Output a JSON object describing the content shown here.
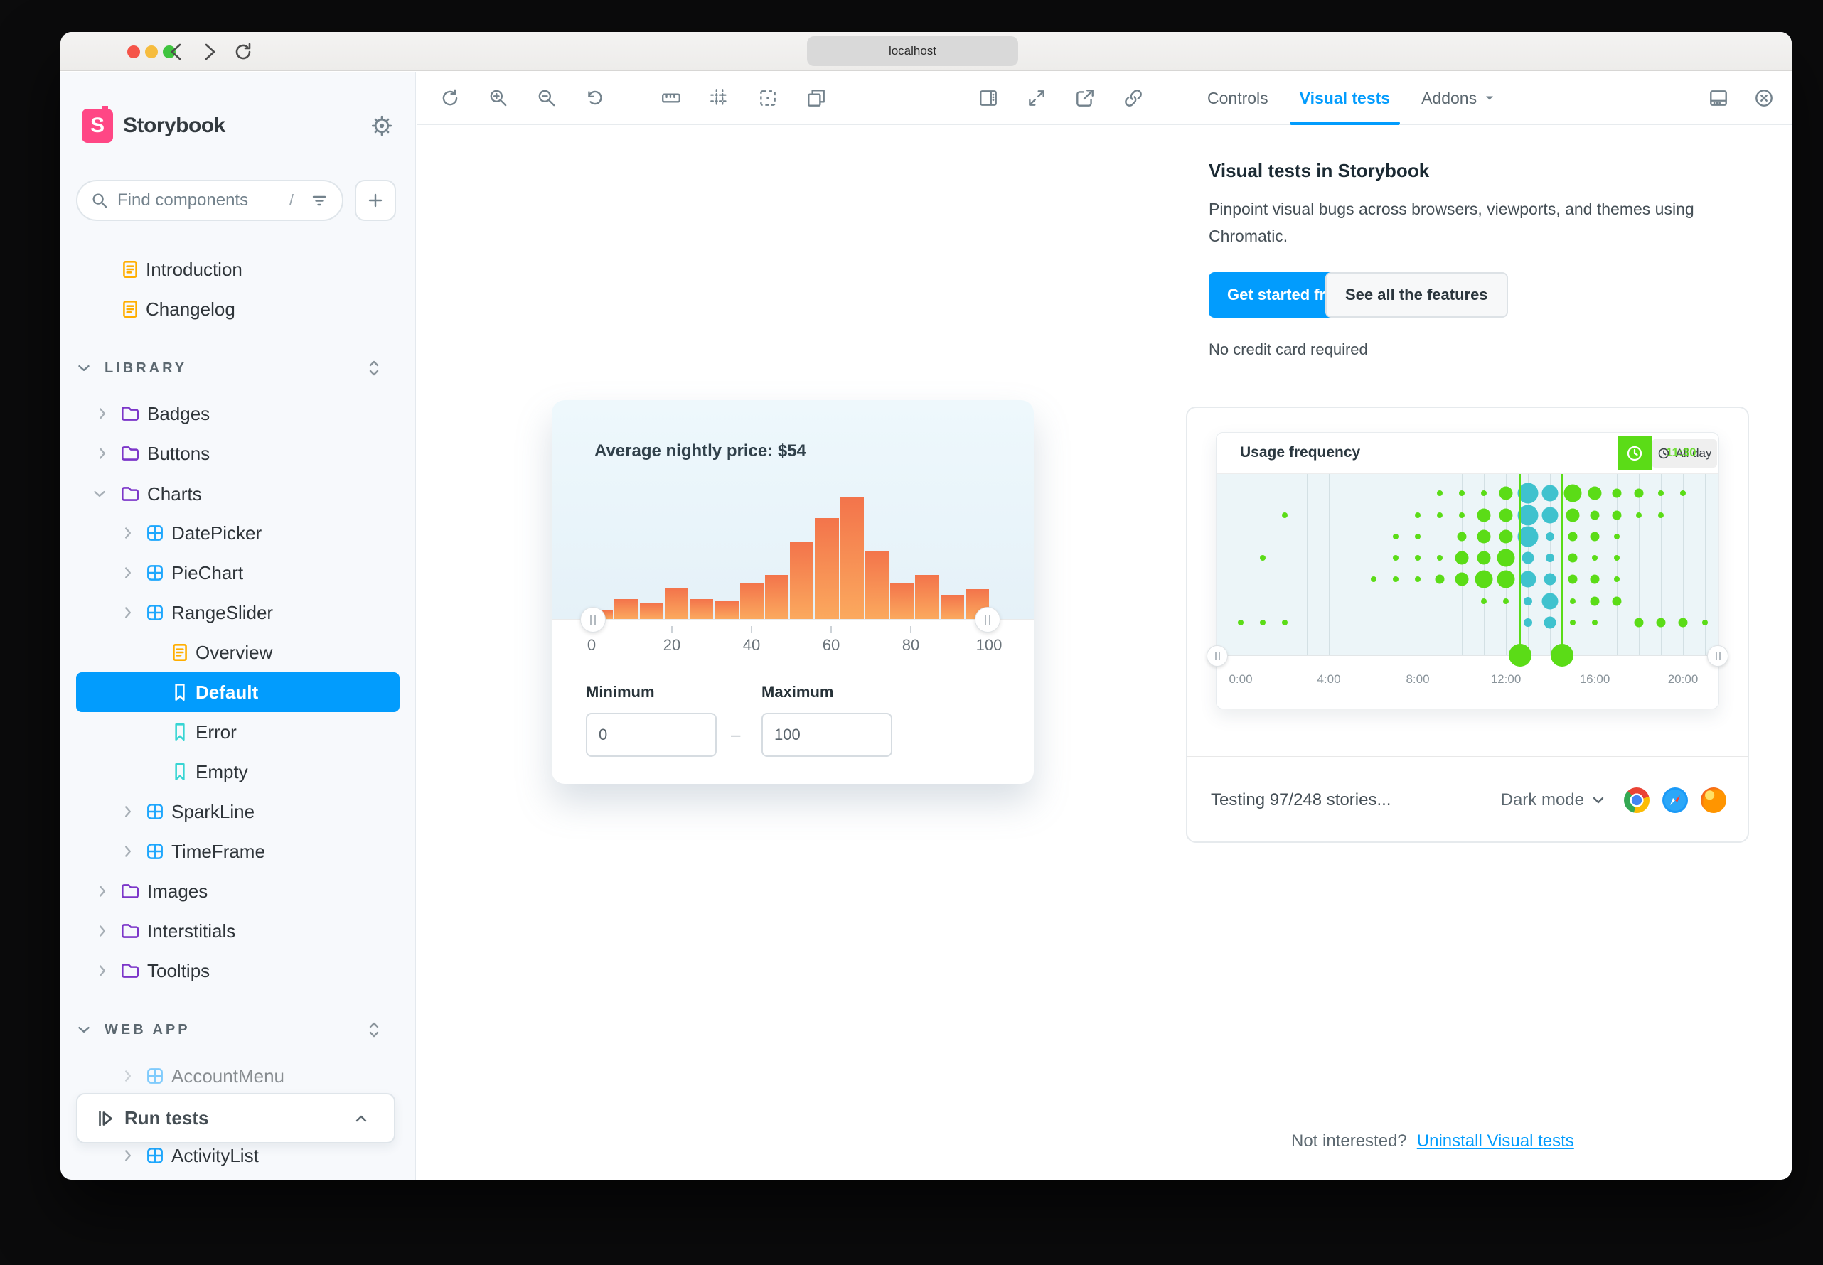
{
  "browser": {
    "url": "localhost"
  },
  "sidebar": {
    "brand": "Storybook",
    "search_placeholder": "Find components",
    "search_shortcut": "/",
    "run_tests": "Run tests",
    "items": {
      "introduction": "Introduction",
      "changelog": "Changelog",
      "library": "LIBRARY",
      "badges": "Badges",
      "buttons": "Buttons",
      "charts": "Charts",
      "datepicker": "DatePicker",
      "piechart": "PieChart",
      "rangeslider": "RangeSlider",
      "overview": "Overview",
      "default": "Default",
      "error": "Error",
      "empty": "Empty",
      "sparkline": "SparkLine",
      "timeframe": "TimeFrame",
      "images": "Images",
      "interstitials": "Interstitials",
      "tooltips": "Tooltips",
      "webapp": "WEB APP",
      "accountmenu": "AccountMenu",
      "activitylist": "ActivityList"
    }
  },
  "preview": {
    "title": "Average nightly price: $54",
    "min_label": "Minimum",
    "max_label": "Maximum",
    "min_value": "0",
    "max_value": "100",
    "range_separator": "–"
  },
  "panel": {
    "tabs": {
      "controls": "Controls",
      "visual_tests": "Visual tests",
      "addons": "Addons"
    },
    "promo": {
      "title": "Visual tests in Storybook",
      "description": "Pinpoint visual bugs across browsers, viewports, and themes using Chromatic.",
      "cta_primary": "Get started free",
      "cta_secondary": "See all the features",
      "note": "No credit card required"
    },
    "status": {
      "testing": "Testing 97/248 stories...",
      "mode": "Dark mode"
    },
    "footer": {
      "question": "Not interested?",
      "link": "Uninstall Visual tests"
    }
  },
  "icons": {
    "browser_icons": [
      "chrome-icon",
      "safari-icon",
      "firefox-icon"
    ],
    "accent_color": "#029CFD",
    "brand_pink": "#FF4785",
    "folder_purple": "#7c36c9",
    "component_blue": "#1EA7FD",
    "doc_orange": "#FFAE00",
    "story_teal": "#37D5D3"
  },
  "chart_data": [
    {
      "type": "bar",
      "title": "Average nightly price: $54",
      "values": [
        12,
        28,
        22,
        43,
        28,
        25,
        51,
        62,
        108,
        142,
        171,
        96,
        51,
        62,
        34,
        42
      ],
      "values_note": "16 price buckets, heights in px relative to tallest bar = 171",
      "x_tick_labels": [
        "0",
        "20",
        "40",
        "60",
        "80",
        "100"
      ],
      "xlim": [
        0,
        100
      ],
      "ylabel": "",
      "xlabel": "",
      "grid": false,
      "slider": {
        "min": 0,
        "max": 100
      },
      "colors": {
        "bar_top": "#F3744B",
        "bar_bottom": "#FBA95E"
      }
    },
    {
      "type": "scatter",
      "title": "Usage frequency",
      "badge": "All day",
      "badge_alt": "11:30",
      "x_tick_labels": [
        "0:00",
        "4:00",
        "8:00",
        "12:00",
        "16:00",
        "20:00"
      ],
      "x_hours_range": [
        0,
        22
      ],
      "rows": 7,
      "selection_hours": [
        12.6,
        14.5
      ],
      "dot_size_scale_px": [
        8,
        13,
        19,
        25
      ],
      "colors": {
        "dot": "#5BDC17",
        "dot_selected": "#3FC2CE",
        "selection": "#5BDC17",
        "plot_bg": "#ecf5f8"
      },
      "dots": [
        [
          9,
          0,
          1,
          0
        ],
        [
          10,
          0,
          1,
          0
        ],
        [
          11,
          0,
          1,
          0
        ],
        [
          12,
          0,
          3,
          0
        ],
        [
          13,
          0,
          4,
          1
        ],
        [
          14,
          0,
          3,
          1
        ],
        [
          15,
          0,
          4,
          0
        ],
        [
          16,
          0,
          3,
          0
        ],
        [
          17,
          0,
          2,
          0
        ],
        [
          18,
          0,
          2,
          0
        ],
        [
          19,
          0,
          1,
          0
        ],
        [
          20,
          0,
          1,
          0
        ],
        [
          2,
          1,
          1,
          0
        ],
        [
          8,
          1,
          1,
          0
        ],
        [
          9,
          1,
          1,
          0
        ],
        [
          10,
          1,
          1,
          0
        ],
        [
          11,
          1,
          3,
          0
        ],
        [
          12,
          1,
          3,
          0
        ],
        [
          13,
          1,
          4,
          1
        ],
        [
          14,
          1,
          3,
          1
        ],
        [
          15,
          1,
          3,
          0
        ],
        [
          16,
          1,
          2,
          0
        ],
        [
          17,
          1,
          2,
          0
        ],
        [
          18,
          1,
          1,
          0
        ],
        [
          19,
          1,
          1,
          0
        ],
        [
          7,
          2,
          1,
          0
        ],
        [
          8,
          2,
          1,
          0
        ],
        [
          10,
          2,
          2,
          0
        ],
        [
          11,
          2,
          3,
          0
        ],
        [
          12,
          2,
          3,
          0
        ],
        [
          13,
          2,
          4,
          1
        ],
        [
          14,
          2,
          1,
          1
        ],
        [
          15,
          2,
          2,
          0
        ],
        [
          16,
          2,
          2,
          0
        ],
        [
          17,
          2,
          1,
          0
        ],
        [
          1,
          3,
          1,
          0
        ],
        [
          7,
          3,
          1,
          0
        ],
        [
          8,
          3,
          1,
          0
        ],
        [
          9,
          3,
          1,
          0
        ],
        [
          10,
          3,
          3,
          0
        ],
        [
          11,
          3,
          3,
          0
        ],
        [
          12,
          3,
          4,
          0
        ],
        [
          13,
          3,
          2,
          1
        ],
        [
          14,
          3,
          1,
          1
        ],
        [
          15,
          3,
          2,
          0
        ],
        [
          16,
          3,
          1,
          0
        ],
        [
          17,
          3,
          1,
          0
        ],
        [
          6,
          4,
          1,
          0
        ],
        [
          7,
          4,
          1,
          0
        ],
        [
          8,
          4,
          1,
          0
        ],
        [
          9,
          4,
          2,
          0
        ],
        [
          10,
          4,
          3,
          0
        ],
        [
          11,
          4,
          4,
          0
        ],
        [
          12,
          4,
          4,
          0
        ],
        [
          13,
          4,
          3,
          1
        ],
        [
          14,
          4,
          2,
          1
        ],
        [
          15,
          4,
          2,
          0
        ],
        [
          16,
          4,
          2,
          0
        ],
        [
          17,
          4,
          1,
          0
        ],
        [
          11,
          5,
          1,
          0
        ],
        [
          12,
          5,
          1,
          0
        ],
        [
          13,
          5,
          1,
          1
        ],
        [
          14,
          5,
          3,
          1
        ],
        [
          15,
          5,
          1,
          0
        ],
        [
          16,
          5,
          2,
          0
        ],
        [
          17,
          5,
          2,
          0
        ],
        [
          0,
          6,
          1,
          0
        ],
        [
          1,
          6,
          1,
          0
        ],
        [
          2,
          6,
          1,
          0
        ],
        [
          13,
          6,
          1,
          1
        ],
        [
          14,
          6,
          2,
          1
        ],
        [
          15,
          6,
          1,
          0
        ],
        [
          16,
          6,
          1,
          0
        ],
        [
          18,
          6,
          2,
          0
        ],
        [
          19,
          6,
          2,
          0
        ],
        [
          20,
          6,
          2,
          0
        ],
        [
          21,
          6,
          1,
          0
        ]
      ]
    }
  ]
}
